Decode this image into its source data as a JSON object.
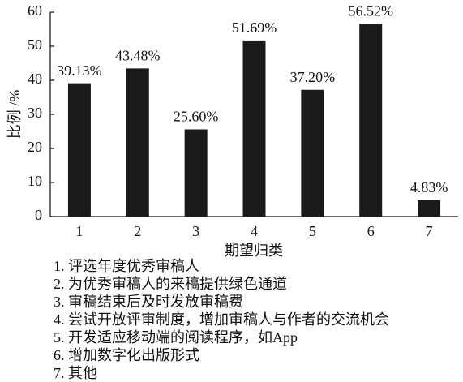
{
  "chart_data": {
    "type": "bar",
    "x_label": "期望归类",
    "y_label": "比例 /%",
    "categories": [
      "1",
      "2",
      "3",
      "4",
      "5",
      "6",
      "7"
    ],
    "values": [
      39.13,
      43.48,
      25.6,
      51.69,
      37.2,
      56.52,
      4.83
    ],
    "value_labels": [
      "39.13%",
      "43.48%",
      "25.60%",
      "51.69%",
      "37.20%",
      "56.52%",
      "4.83%"
    ],
    "color": "#1a1a1a",
    "ylim": [
      0,
      60
    ],
    "yticks": [
      0,
      10,
      20,
      30,
      40,
      50,
      60
    ],
    "notes": [
      "1. 评选年度优秀审稿人",
      "2. 为优秀审稿人的来稿提供绿色通道",
      "3. 审稿结束后及时发放审稿费",
      "4. 尝试开放评审制度，增加审稿人与作者的交流机会",
      "5. 开发适应移动端的阅读程序，如App",
      "6. 增加数字化出版形式",
      "7. 其他"
    ]
  }
}
